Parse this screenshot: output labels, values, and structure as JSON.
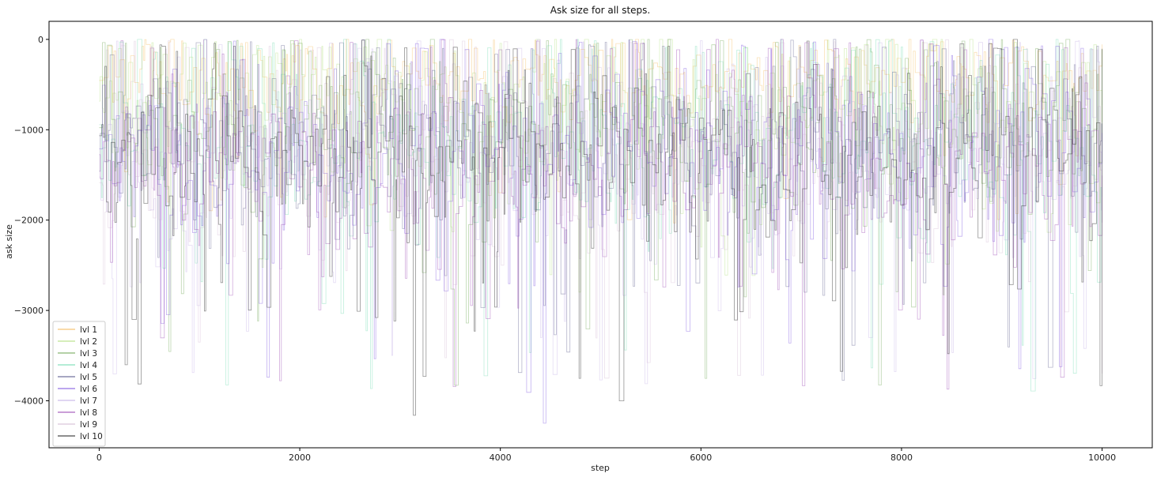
{
  "chart_data": {
    "type": "line",
    "title": "Ask size for all steps.",
    "xlabel": "step",
    "ylabel": "ask size",
    "xlim": [
      -500,
      10500
    ],
    "ylim": [
      -4520,
      200
    ],
    "xticks": [
      0,
      2000,
      4000,
      6000,
      8000,
      10000
    ],
    "xtick_labels": [
      "0",
      "2000",
      "4000",
      "6000",
      "8000",
      "10000"
    ],
    "yticks": [
      0,
      -1000,
      -2000,
      -3000,
      -4000
    ],
    "ytick_labels": [
      "0",
      "−1000",
      "−2000",
      "−3000",
      "−4000"
    ],
    "legend_position": "lower-left",
    "step_range": [
      0,
      10000
    ],
    "series": [
      {
        "name": "lvl 1",
        "color": "#f0a830",
        "opacity": 0.35,
        "mean": -450,
        "spread": 380,
        "min": -2050,
        "max": 0
      },
      {
        "name": "lvl 2",
        "color": "#9ad65a",
        "opacity": 0.35,
        "mean": -700,
        "spread": 600,
        "min": -2800,
        "max": 0
      },
      {
        "name": "lvl 3",
        "color": "#5a9a3a",
        "opacity": 0.4,
        "mean": -900,
        "spread": 750,
        "min": -3950,
        "max": 0
      },
      {
        "name": "lvl 4",
        "color": "#4ad09a",
        "opacity": 0.35,
        "mean": -1100,
        "spread": 800,
        "min": -3950,
        "max": 0
      },
      {
        "name": "lvl 5",
        "color": "#2a2a6a",
        "opacity": 0.35,
        "mean": -1150,
        "spread": 800,
        "min": -3800,
        "max": 0
      },
      {
        "name": "lvl 6",
        "color": "#6a3adc",
        "opacity": 0.4,
        "mean": -1200,
        "spread": 800,
        "min": -4280,
        "max": 0
      },
      {
        "name": "lvl 7",
        "color": "#b49ae0",
        "opacity": 0.35,
        "mean": -1250,
        "spread": 800,
        "min": -3900,
        "max": 0
      },
      {
        "name": "lvl 8",
        "color": "#8a2aa8",
        "opacity": 0.4,
        "mean": -1300,
        "spread": 800,
        "min": -3950,
        "max": 0
      },
      {
        "name": "lvl 9",
        "color": "#c9a8c9",
        "opacity": 0.35,
        "mean": -1300,
        "spread": 800,
        "min": -3800,
        "max": 0
      },
      {
        "name": "lvl 10",
        "color": "#2a2a2a",
        "opacity": 0.5,
        "mean": -1250,
        "spread": 800,
        "min": -4190,
        "max": 0
      }
    ]
  }
}
